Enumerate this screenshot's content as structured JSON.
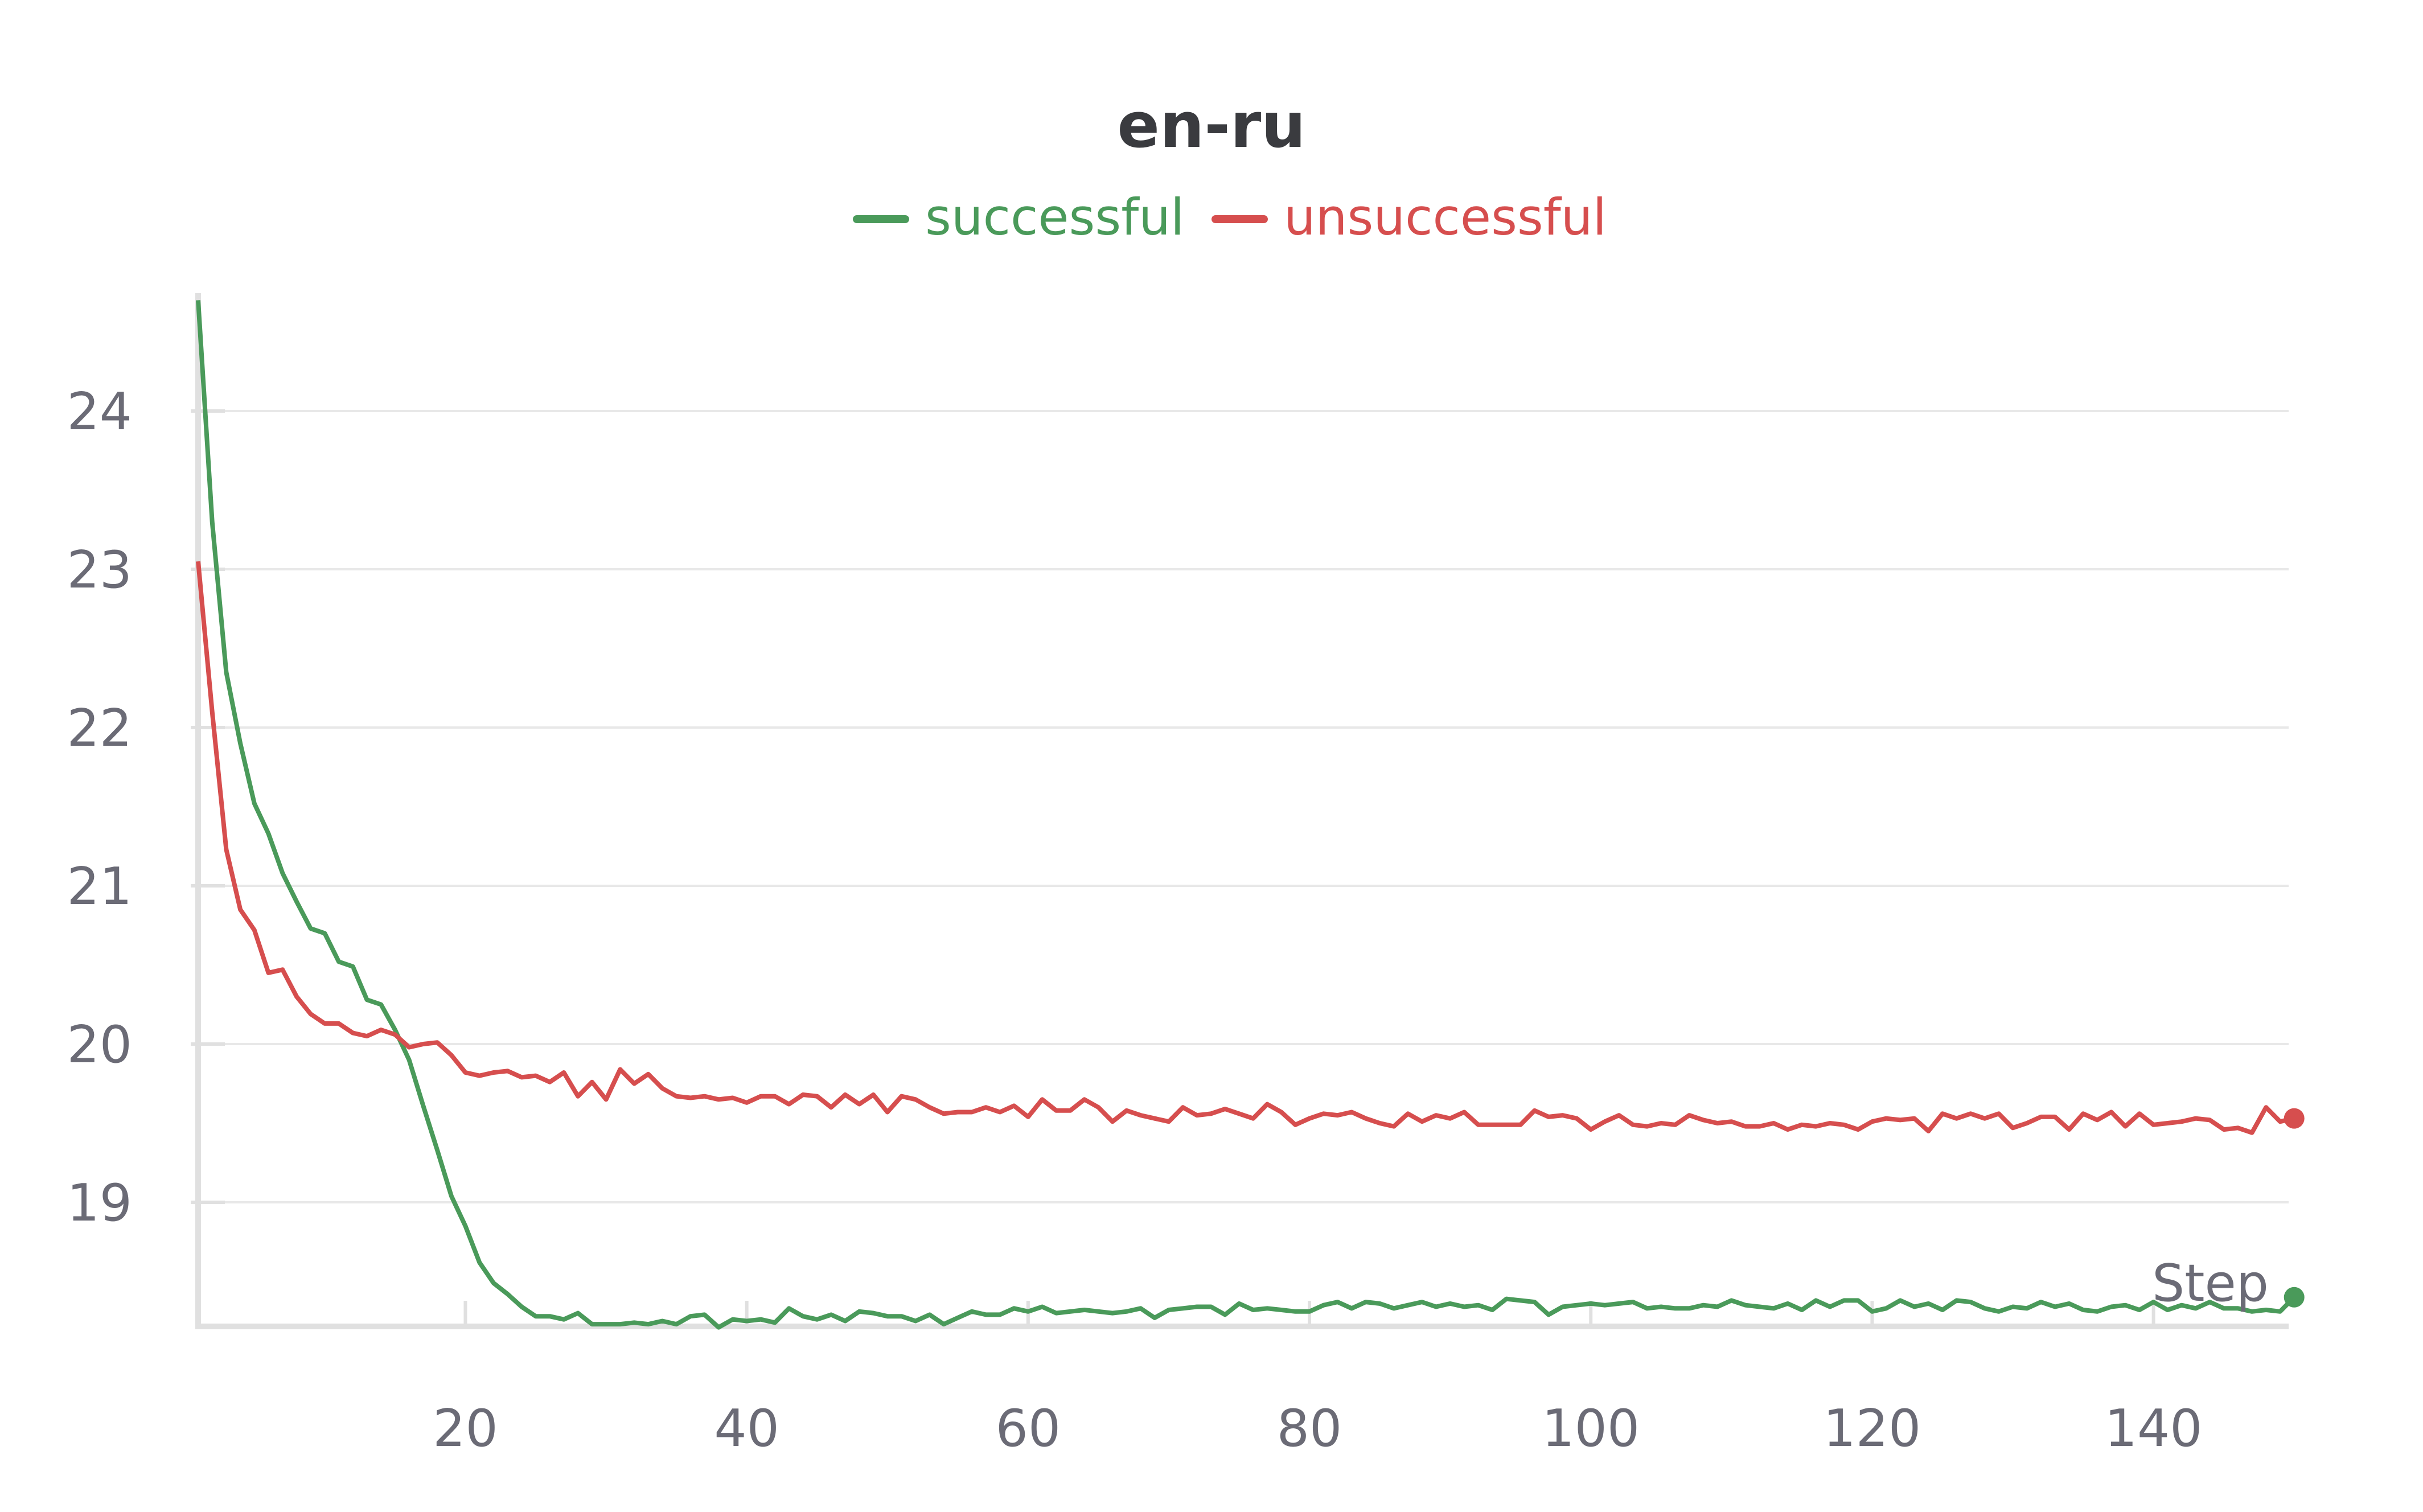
{
  "chart_data": {
    "type": "line",
    "title": "en-ru",
    "xlabel": "Step",
    "ylabel": "",
    "xlim": [
      1,
      150
    ],
    "ylim": [
      18.2,
      24.75
    ],
    "xticks": [
      20,
      40,
      60,
      80,
      100,
      120,
      140
    ],
    "yticks": [
      19,
      20,
      21,
      22,
      23,
      24
    ],
    "grid": "horizontal",
    "legend_position": "top-center",
    "x_start": 1,
    "x_step": 1,
    "series": [
      {
        "name": "successful",
        "color": "#4a9a5a",
        "values": [
          24.7,
          23.3,
          22.35,
          21.9,
          21.52,
          21.33,
          21.08,
          20.9,
          20.73,
          20.7,
          20.52,
          20.49,
          20.28,
          20.25,
          20.09,
          19.9,
          19.61,
          19.33,
          19.04,
          18.85,
          18.62,
          18.49,
          18.42,
          18.34,
          18.28,
          18.28,
          18.26,
          18.3,
          18.23,
          18.23,
          18.23,
          18.24,
          18.23,
          18.25,
          18.23,
          18.28,
          18.29,
          18.21,
          18.26,
          18.25,
          18.26,
          18.24,
          18.33,
          18.28,
          18.26,
          18.29,
          18.25,
          18.31,
          18.3,
          18.28,
          18.28,
          18.25,
          18.29,
          18.23,
          18.27,
          18.31,
          18.29,
          18.29,
          18.33,
          18.31,
          18.34,
          18.3,
          18.31,
          18.32,
          18.31,
          18.3,
          18.31,
          18.33,
          18.27,
          18.32,
          18.33,
          18.34,
          18.34,
          18.29,
          18.36,
          18.32,
          18.33,
          18.32,
          18.31,
          18.31,
          18.35,
          18.37,
          18.33,
          18.37,
          18.36,
          18.33,
          18.35,
          18.37,
          18.34,
          18.36,
          18.34,
          18.35,
          18.32,
          18.39,
          18.38,
          18.37,
          18.29,
          18.34,
          18.35,
          18.36,
          18.35,
          18.36,
          18.37,
          18.33,
          18.34,
          18.33,
          18.33,
          18.35,
          18.34,
          18.38,
          18.35,
          18.34,
          18.33,
          18.36,
          18.32,
          18.38,
          18.34,
          18.38,
          18.38,
          18.31,
          18.33,
          18.38,
          18.34,
          18.36,
          18.32,
          18.38,
          18.37,
          18.33,
          18.31,
          18.34,
          18.33,
          18.37,
          18.34,
          18.36,
          18.32,
          18.31,
          18.34,
          18.35,
          18.32,
          18.37,
          18.32,
          18.35,
          18.33,
          18.37,
          18.33,
          18.33,
          18.31,
          18.32,
          18.31,
          18.4
        ]
      },
      {
        "name": "unsuccessful",
        "color": "#d64e4e",
        "values": [
          23.05,
          22.1,
          21.23,
          20.85,
          20.72,
          20.45,
          20.47,
          20.3,
          20.19,
          20.13,
          20.13,
          20.07,
          20.05,
          20.09,
          20.06,
          19.98,
          20.0,
          20.01,
          19.93,
          19.82,
          19.8,
          19.82,
          19.83,
          19.79,
          19.8,
          19.76,
          19.82,
          19.67,
          19.76,
          19.65,
          19.84,
          19.75,
          19.81,
          19.72,
          19.67,
          19.66,
          19.67,
          19.65,
          19.66,
          19.63,
          19.67,
          19.67,
          19.62,
          19.68,
          19.67,
          19.6,
          19.68,
          19.62,
          19.68,
          19.57,
          19.67,
          19.65,
          19.6,
          19.56,
          19.57,
          19.57,
          19.6,
          19.57,
          19.61,
          19.54,
          19.65,
          19.58,
          19.58,
          19.65,
          19.6,
          19.51,
          19.58,
          19.55,
          19.53,
          19.51,
          19.6,
          19.55,
          19.56,
          19.59,
          19.56,
          19.53,
          19.62,
          19.57,
          19.49,
          19.53,
          19.56,
          19.55,
          19.57,
          19.53,
          19.5,
          19.48,
          19.56,
          19.51,
          19.55,
          19.53,
          19.57,
          19.49,
          19.49,
          19.49,
          19.49,
          19.58,
          19.54,
          19.55,
          19.53,
          19.46,
          19.51,
          19.55,
          19.49,
          19.48,
          19.5,
          19.49,
          19.55,
          19.52,
          19.5,
          19.51,
          19.48,
          19.48,
          19.5,
          19.46,
          19.49,
          19.48,
          19.5,
          19.49,
          19.46,
          19.51,
          19.53,
          19.52,
          19.53,
          19.45,
          19.56,
          19.53,
          19.56,
          19.53,
          19.56,
          19.47,
          19.5,
          19.54,
          19.54,
          19.46,
          19.56,
          19.52,
          19.57,
          19.48,
          19.56,
          19.49,
          19.5,
          19.51,
          19.53,
          19.52,
          19.46,
          19.47,
          19.44,
          19.6,
          19.51,
          19.53
        ]
      }
    ]
  }
}
